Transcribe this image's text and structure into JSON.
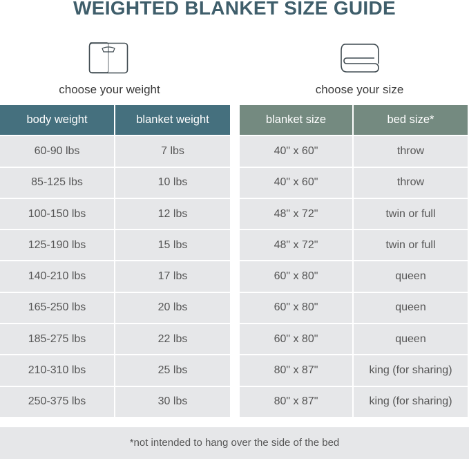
{
  "title": "WEIGHTED BLANKET SIZE GUIDE",
  "left": {
    "caption": "choose your weight",
    "icon": "scale-icon",
    "color": "#45707e",
    "headers": [
      "body weight",
      "blanket weight"
    ],
    "rows": [
      [
        "60-90 lbs",
        "7 lbs"
      ],
      [
        "85-125 lbs",
        "10 lbs"
      ],
      [
        "100-150 lbs",
        "12 lbs"
      ],
      [
        "125-190 lbs",
        "15 lbs"
      ],
      [
        "140-210 lbs",
        "17 lbs"
      ],
      [
        "165-250 lbs",
        "20 lbs"
      ],
      [
        "185-275 lbs",
        "22 lbs"
      ],
      [
        "210-310 lbs",
        "25 lbs"
      ],
      [
        "250-375 lbs",
        "30 lbs"
      ]
    ]
  },
  "right": {
    "caption": "choose your size",
    "icon": "folded-blanket-icon",
    "color": "#748a80",
    "headers": [
      "blanket size",
      "bed size*"
    ],
    "rows": [
      [
        "40\" x 60\"",
        "throw"
      ],
      [
        "40\" x 60\"",
        "throw"
      ],
      [
        "48\" x 72\"",
        "twin or full"
      ],
      [
        "48\" x 72\"",
        "twin or full"
      ],
      [
        "60\" x 80\"",
        "queen"
      ],
      [
        "60\" x 80\"",
        "queen"
      ],
      [
        "60\" x 80\"",
        "queen"
      ],
      [
        "80\" x 87\"",
        "king (for sharing)"
      ],
      [
        "80\" x 87\"",
        "king (for sharing)"
      ]
    ]
  },
  "footnote": "*not intended to hang over the side of the bed"
}
